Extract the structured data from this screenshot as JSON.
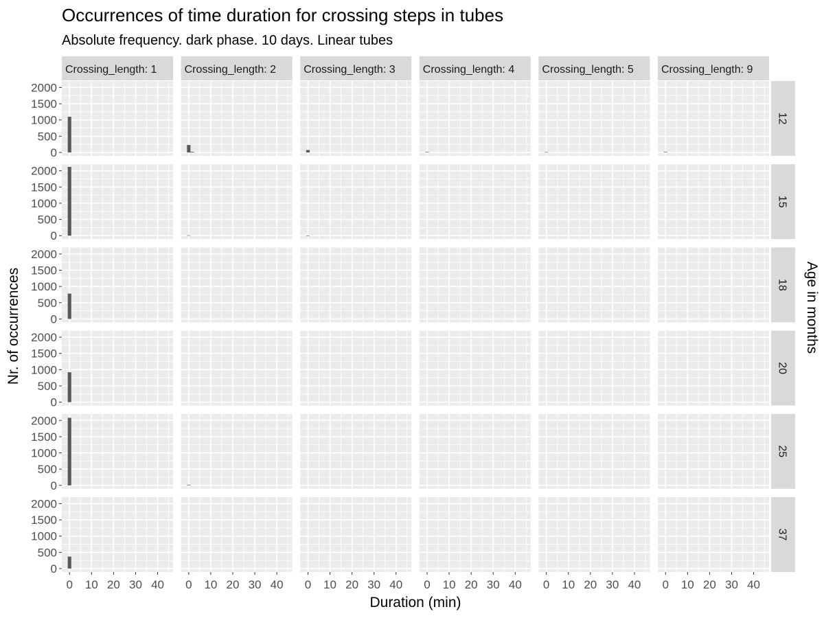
{
  "chart_data": {
    "type": "bar",
    "title": "Occurrences of time duration for crossing steps in tubes",
    "subtitle": "Absolute frequency. dark phase. 10 days. Linear tubes",
    "xlabel": "Duration (min)",
    "ylabel": "Nr. of occurrences",
    "facet_row_label": "Age in months",
    "column_facets": [
      "Crossing_length: 1",
      "Crossing_length: 2",
      "Crossing_length: 3",
      "Crossing_length: 4",
      "Crossing_length: 5",
      "Crossing_length: 9"
    ],
    "row_facets": [
      "12",
      "15",
      "18",
      "20",
      "25",
      "37"
    ],
    "x_ticks": [
      0,
      10,
      20,
      30,
      40
    ],
    "y_ticks": [
      0,
      500,
      1000,
      1500,
      2000
    ],
    "xlim": [
      -3.5,
      47
    ],
    "ylim": [
      -105,
      2200
    ],
    "bin_width": 1.6,
    "panels": [
      {
        "row": "12",
        "col": "Crossing_length: 1",
        "bins": [
          {
            "x": 0,
            "y": 1100
          }
        ]
      },
      {
        "row": "12",
        "col": "Crossing_length: 2",
        "bins": [
          {
            "x": 0,
            "y": 230
          },
          {
            "x": 1.6,
            "y": 20
          }
        ]
      },
      {
        "row": "12",
        "col": "Crossing_length: 3",
        "bins": [
          {
            "x": 0,
            "y": 75
          }
        ]
      },
      {
        "row": "12",
        "col": "Crossing_length: 4",
        "bins": [
          {
            "x": 0,
            "y": 15
          }
        ]
      },
      {
        "row": "12",
        "col": "Crossing_length: 5",
        "bins": [
          {
            "x": 0,
            "y": 10
          }
        ]
      },
      {
        "row": "12",
        "col": "Crossing_length: 9",
        "bins": [
          {
            "x": 0,
            "y": 15
          }
        ]
      },
      {
        "row": "15",
        "col": "Crossing_length: 1",
        "bins": [
          {
            "x": 0,
            "y": 2120
          }
        ]
      },
      {
        "row": "15",
        "col": "Crossing_length: 2",
        "bins": [
          {
            "x": 0,
            "y": 10
          }
        ]
      },
      {
        "row": "15",
        "col": "Crossing_length: 3",
        "bins": [
          {
            "x": 0,
            "y": 5
          }
        ]
      },
      {
        "row": "18",
        "col": "Crossing_length: 1",
        "bins": [
          {
            "x": 0,
            "y": 780
          }
        ]
      },
      {
        "row": "20",
        "col": "Crossing_length: 1",
        "bins": [
          {
            "x": 0,
            "y": 920
          }
        ]
      },
      {
        "row": "25",
        "col": "Crossing_length: 1",
        "bins": [
          {
            "x": 0,
            "y": 2080
          }
        ]
      },
      {
        "row": "25",
        "col": "Crossing_length: 2",
        "bins": [
          {
            "x": 0,
            "y": 15
          }
        ]
      },
      {
        "row": "37",
        "col": "Crossing_length: 1",
        "bins": [
          {
            "x": 0,
            "y": 370
          }
        ]
      }
    ],
    "grid": true,
    "bar_color": "#595959",
    "panel_background": "#ebebeb",
    "strip_background": "#d9d9d9",
    "grid_color": "#ffffff"
  }
}
